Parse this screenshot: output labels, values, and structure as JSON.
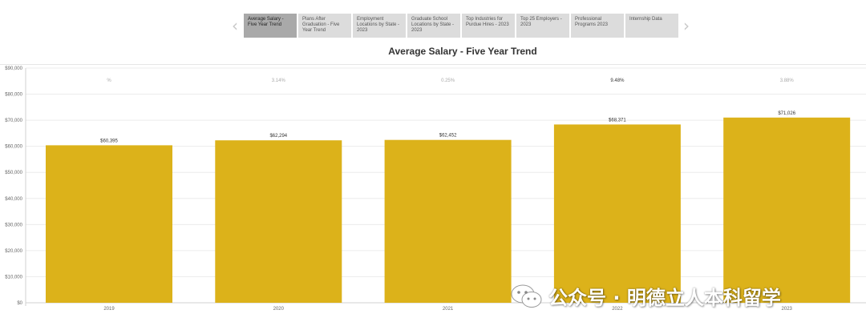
{
  "nav": {
    "prev_icon": "chevron-left-icon",
    "next_icon": "chevron-right-icon"
  },
  "tabs": [
    {
      "label": "Average Salary - Five Year Trend",
      "active": true
    },
    {
      "label": "Plans After Graduation - Five Year Trend",
      "active": false
    },
    {
      "label": "Employment Locations by State - 2023",
      "active": false
    },
    {
      "label": "Graduate School Locations by State - 2023",
      "active": false
    },
    {
      "label": "Top Industries for Purdue Hires - 2023",
      "active": false
    },
    {
      "label": "Top 25 Employers - 2023",
      "active": false
    },
    {
      "label": "Professional Programs 2023",
      "active": false
    },
    {
      "label": "Internship Data",
      "active": false
    }
  ],
  "chart_data": {
    "type": "bar",
    "title": "Average Salary - Five Year Trend",
    "categories": [
      "2019",
      "2020",
      "2021",
      "2022",
      "2023"
    ],
    "values": [
      60395,
      62294,
      62452,
      68371,
      71026
    ],
    "value_labels": [
      "$60,395",
      "$62,294",
      "$62,452",
      "$68,371",
      "$71,026"
    ],
    "change_labels": [
      "%",
      "3.14%",
      "0.25%",
      "9.48%",
      "3.88%"
    ],
    "ylim": [
      0,
      90000
    ],
    "yticks": [
      0,
      10000,
      20000,
      30000,
      40000,
      50000,
      60000,
      70000,
      80000,
      90000
    ],
    "ytick_labels": [
      "$0",
      "$10,000",
      "$20,000",
      "$30,000",
      "$40,000",
      "$50,000",
      "$60,000",
      "$70,000",
      "$80,000",
      "$90,000"
    ],
    "grid": true,
    "bar_color": "#dcb21a"
  },
  "watermark": {
    "text": "公众号 · 明德立人本科留学",
    "icon": "wechat-icon"
  }
}
